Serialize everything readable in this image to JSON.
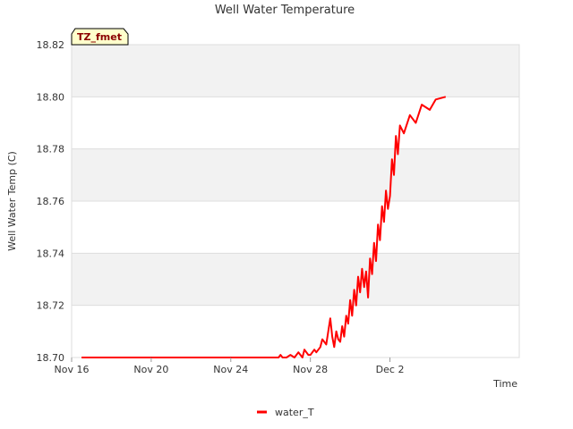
{
  "chart_data": {
    "type": "line",
    "title": "Well Water Temperature",
    "xlabel": "Time",
    "ylabel": "Well Water Temp (C)",
    "badge": "TZ_fmet",
    "x_unit": "day of November (Dec 2 = day 32)",
    "xlim": [
      16,
      38.5
    ],
    "ylim": [
      18.7,
      18.82
    ],
    "x_ticks": [
      {
        "value": 16,
        "label": "Nov 16"
      },
      {
        "value": 20,
        "label": "Nov 20"
      },
      {
        "value": 24,
        "label": "Nov 24"
      },
      {
        "value": 28,
        "label": "Nov 28"
      },
      {
        "value": 32,
        "label": "Dec 2"
      }
    ],
    "y_ticks": [
      {
        "value": 18.7,
        "label": "18.70"
      },
      {
        "value": 18.72,
        "label": "18.72"
      },
      {
        "value": 18.74,
        "label": "18.74"
      },
      {
        "value": 18.76,
        "label": "18.76"
      },
      {
        "value": 18.78,
        "label": "18.78"
      },
      {
        "value": 18.8,
        "label": "18.80"
      },
      {
        "value": 18.82,
        "label": "18.82"
      }
    ],
    "grid": true,
    "band_color": "#f2f2f2",
    "grid_color": "#dddddd",
    "legend_position": "bottom-center",
    "series": [
      {
        "name": "water_T",
        "color": "#ff0000",
        "x": [
          16.5,
          20,
          24,
          26.4,
          26.5,
          26.6,
          26.8,
          27.0,
          27.2,
          27.4,
          27.6,
          27.7,
          27.9,
          28.0,
          28.2,
          28.3,
          28.5,
          28.6,
          28.8,
          29.0,
          29.1,
          29.2,
          29.3,
          29.4,
          29.5,
          29.6,
          29.7,
          29.8,
          29.9,
          30.0,
          30.1,
          30.2,
          30.3,
          30.4,
          30.5,
          30.6,
          30.7,
          30.8,
          30.9,
          31.0,
          31.1,
          31.2,
          31.3,
          31.4,
          31.5,
          31.6,
          31.7,
          31.8,
          31.9,
          32.0,
          32.1,
          32.2,
          32.3,
          32.4,
          32.5,
          32.7,
          33.0,
          33.3,
          33.6,
          34.0,
          34.3,
          34.8
        ],
        "values": [
          18.7,
          18.7,
          18.7,
          18.7,
          18.701,
          18.7,
          18.7,
          18.701,
          18.7,
          18.702,
          18.7,
          18.703,
          18.701,
          18.701,
          18.703,
          18.702,
          18.704,
          18.707,
          18.705,
          18.715,
          18.708,
          18.704,
          18.71,
          18.707,
          18.706,
          18.712,
          18.708,
          18.716,
          18.713,
          18.722,
          18.716,
          18.726,
          18.72,
          18.731,
          18.725,
          18.734,
          18.727,
          18.733,
          18.723,
          18.738,
          18.732,
          18.744,
          18.737,
          18.751,
          18.745,
          18.758,
          18.752,
          18.764,
          18.757,
          18.762,
          18.776,
          18.77,
          18.785,
          18.778,
          18.789,
          18.786,
          18.793,
          18.79,
          18.797,
          18.795,
          18.799,
          18.8
        ]
      }
    ]
  }
}
